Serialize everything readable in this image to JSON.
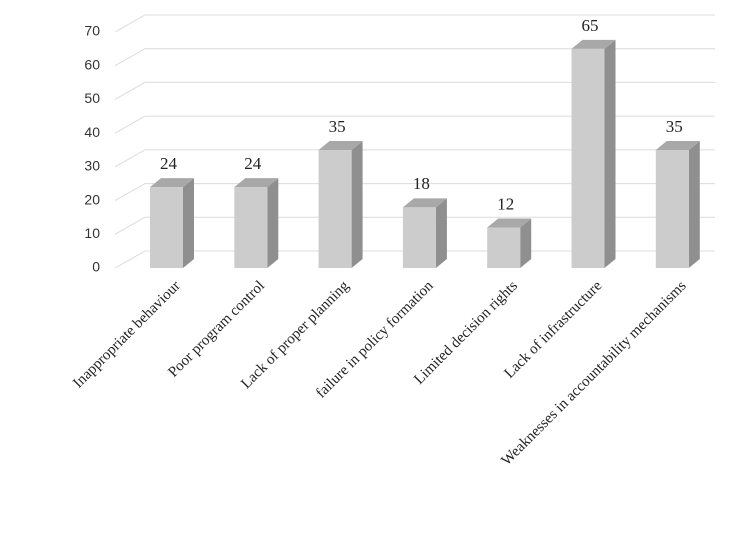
{
  "chart_data": {
    "type": "bar",
    "categories": [
      "Inappropriate behaviour",
      "Poor program control",
      "Lack of proper planning",
      "failure in policy formation",
      "Limited decision rights",
      "Lack of infrastructure",
      "Weaknesses in accountability mechanisms"
    ],
    "values": [
      24,
      24,
      35,
      18,
      12,
      65,
      35
    ],
    "color": "#cccccc",
    "ylim": [
      0,
      70
    ],
    "yticks": [
      0,
      10,
      20,
      30,
      40,
      50,
      60,
      70
    ],
    "grid": true
  }
}
